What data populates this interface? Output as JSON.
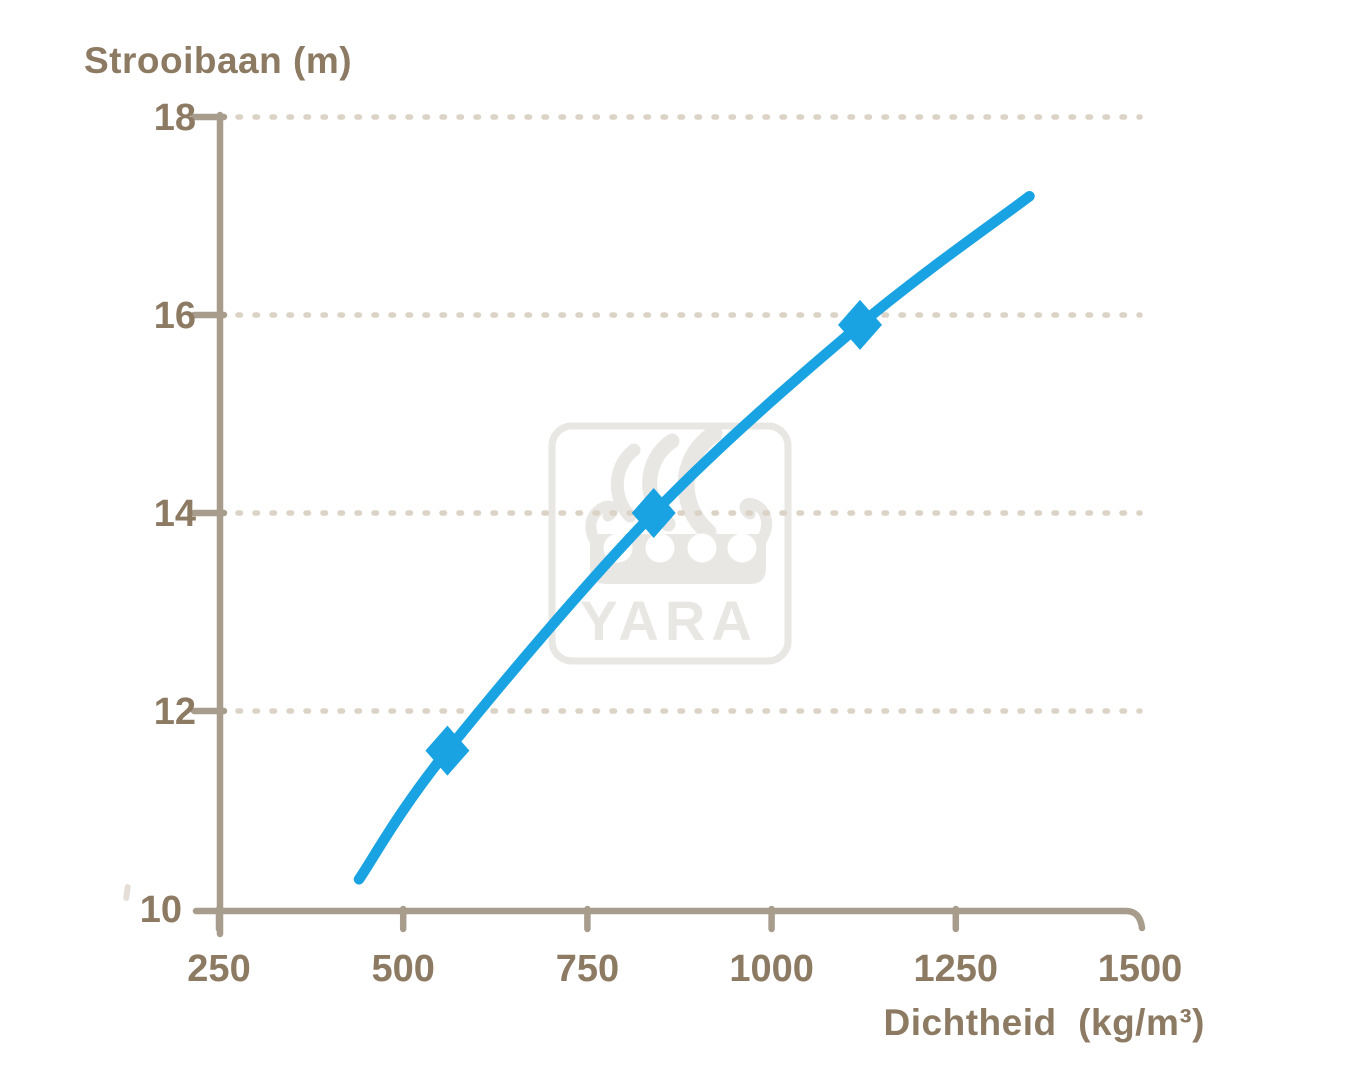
{
  "page": {
    "background": "#ffffff"
  },
  "colors": {
    "curve": "#1aa3e2",
    "axis": "#a89c8d",
    "text": "#8c7a63",
    "grid": "#dcd3c7",
    "watermark": "#e9e7e4",
    "background": "#ffffff"
  },
  "watermark": {
    "text": "YARA",
    "icon": "viking-ship-logo"
  },
  "chart_data": {
    "type": "line",
    "title": "",
    "ylabel": "Strooibaan (m)",
    "xlabel": "Dichtheid  (kg/m³)",
    "xlim": [
      250,
      1500
    ],
    "ylim": [
      10,
      18
    ],
    "x_ticks": [
      250,
      500,
      750,
      1000,
      1250,
      1500
    ],
    "y_ticks": [
      18,
      16,
      14,
      12,
      10
    ],
    "gridlines_y": [
      18,
      16,
      14,
      12
    ],
    "grid_style": "dotted-horizontal",
    "legend_position": "none",
    "series": [
      {
        "name": "strooibaan-vs-dichtheid",
        "x": [
          440,
          560,
          840,
          1120,
          1350
        ],
        "y": [
          10.3,
          11.6,
          14.0,
          15.9,
          17.2
        ],
        "color": "#1aa3e2",
        "line_style": "smooth",
        "marker": "diamond",
        "marker_points": {
          "x": [
            560,
            840,
            1120
          ],
          "y": [
            11.6,
            14.0,
            15.9
          ]
        }
      }
    ]
  }
}
